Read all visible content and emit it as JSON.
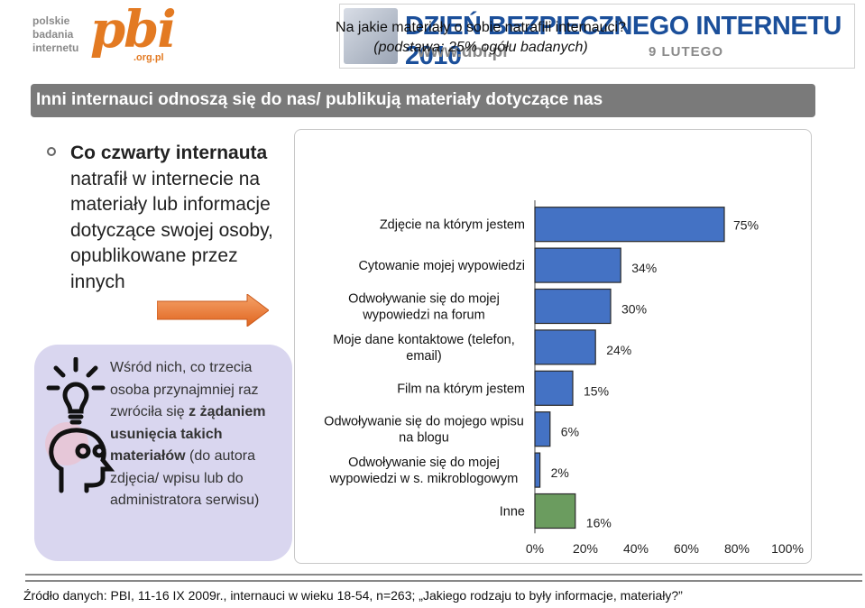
{
  "logo": {
    "small_text": [
      "polskie",
      "badania",
      "internetu"
    ],
    "big_text": "pbi",
    "domain": ".org.pl"
  },
  "banner": {
    "title": "DZIEŃ BEZPIECZNEGO INTERNETU 2010",
    "url": "www.dbi.pl",
    "date": "9 LUTEGO"
  },
  "header": {
    "title": "Inni internauci odnoszą się do nas/ publikują materiały dotyczące nas"
  },
  "left": {
    "lead_bold": "Co czwarty internauta",
    "lead_rest": "natrafił  w internecie na materiały lub informacje dotyczące swojej osoby, opublikowane przez innych",
    "panel_pre": "Wśród nich, co trzecia osoba przynajmniej raz zwróciła się ",
    "panel_bold": "z żądaniem usunięcia takich materiałów",
    "panel_post": " (do autora zdjęcia/ wpisu lub do administratora serwisu)"
  },
  "colors": {
    "bar_fill": "#4472c4",
    "bar_other": "#6b9c5f",
    "title_bar": "#7a7a7a",
    "panel_bg": "#d9d6ef",
    "arrow": "#e8762d"
  },
  "chart_data": {
    "type": "bar",
    "orientation": "horizontal",
    "title": "Na jakie materiały o sobie natrafili internauci?",
    "subtitle": "(podstawa: 25% ogółu badanych)",
    "categories": [
      [
        "Zdjęcie na którym jestem"
      ],
      [
        "Cytowanie mojej wypowiedzi"
      ],
      [
        "Odwoływanie się do mojej",
        "wypowiedzi na forum"
      ],
      [
        "Moje dane kontaktowe (telefon,",
        "email)"
      ],
      [
        "Film na którym jestem"
      ],
      [
        "Odwoływanie się do mojego wpisu",
        "na blogu"
      ],
      [
        "Odwoływanie się do mojej",
        "wypowiedzi w s. mikroblogowym"
      ],
      [
        "Inne"
      ]
    ],
    "values": [
      75,
      34,
      30,
      24,
      15,
      6,
      2,
      16
    ],
    "data_labels": [
      "75%",
      "34%",
      "30%",
      "24%",
      "15%",
      "6%",
      "2%",
      "16%"
    ],
    "x_ticks": [
      "0%",
      "20%",
      "40%",
      "60%",
      "80%",
      "100%"
    ],
    "xlim": [
      0,
      100
    ],
    "grid": false
  },
  "source": "Źródło danych: PBI, 11-16 IX 2009r., internauci w wieku 18-54, n=263; „Jakiego rodzaju to były informacje, materiały?”"
}
